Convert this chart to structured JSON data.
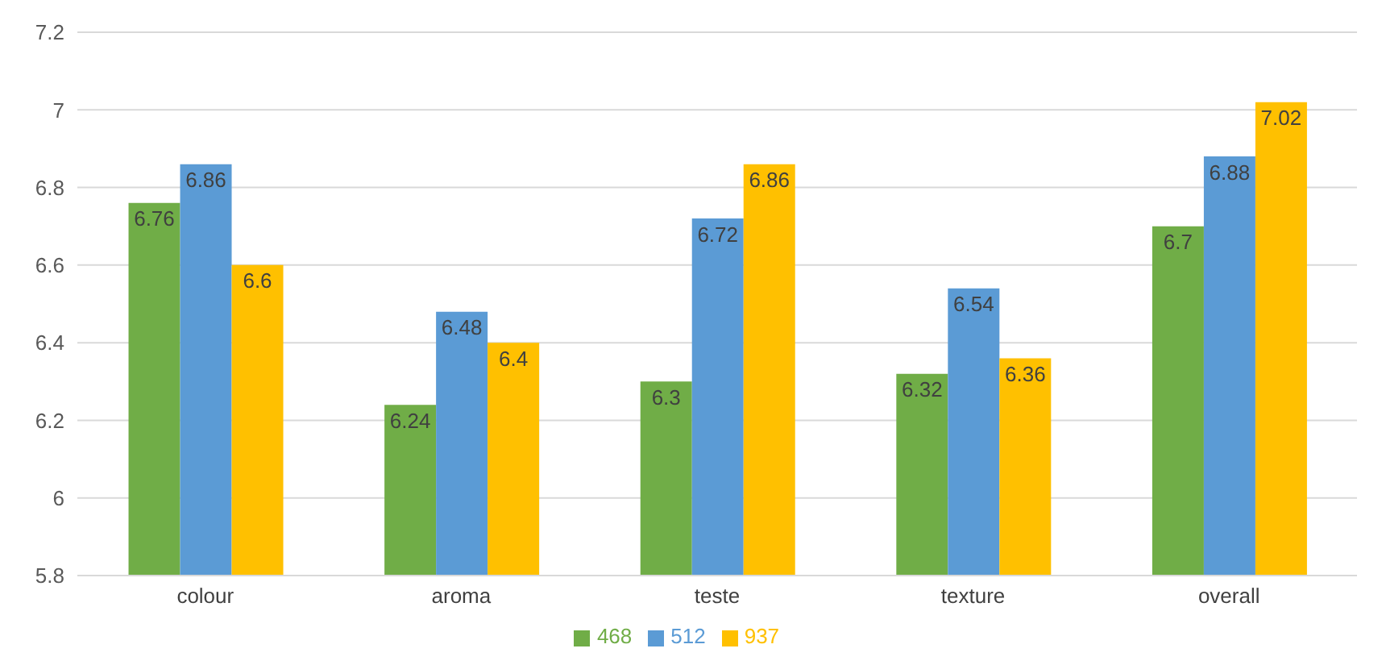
{
  "chart_data": {
    "type": "bar",
    "categories": [
      "colour",
      "aroma",
      "teste",
      "texture",
      "overall"
    ],
    "series": [
      {
        "name": "468",
        "color": "#70ad47",
        "values": [
          6.76,
          6.24,
          6.3,
          6.32,
          6.7
        ]
      },
      {
        "name": "512",
        "color": "#5b9bd5",
        "values": [
          6.86,
          6.48,
          6.72,
          6.54,
          6.88
        ]
      },
      {
        "name": "937",
        "color": "#ffc000",
        "values": [
          6.6,
          6.4,
          6.86,
          6.36,
          7.02
        ]
      }
    ],
    "ylim": [
      5.8,
      7.2
    ],
    "yticks": [
      5.8,
      6,
      6.2,
      6.4,
      6.6,
      6.8,
      7,
      7.2
    ],
    "grid": "y",
    "legend": "bottom",
    "data_labels": true
  }
}
